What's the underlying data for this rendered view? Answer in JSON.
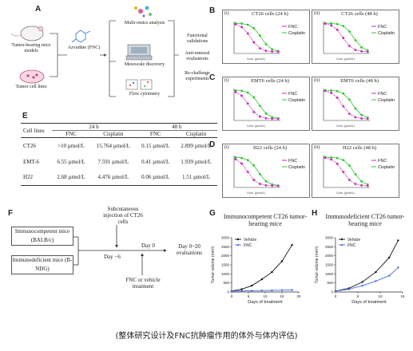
{
  "panelA": {
    "label": "A",
    "mice_label": "Tumor-bearing mice models",
    "cells_label": "Tumor cell lines",
    "drug_label": "Azvudine (FNC)",
    "methods": [
      "Multi-omics analysis",
      "Mesoscale discovery",
      "Flow cytometry"
    ],
    "outcomes": [
      "Functional validations",
      "Anti-tumoral evaluations",
      "Re-challenge experiments"
    ]
  },
  "panels_bcd": [
    {
      "label": "B",
      "charts": [
        {
          "roman": "(i)",
          "title": "CT26 cells (24 h)",
          "shift": 0.35
        },
        {
          "roman": "(ii)",
          "title": "CT26 cells (48 h)",
          "shift": 0.42
        }
      ]
    },
    {
      "label": "C",
      "charts": [
        {
          "roman": "(i)",
          "title": "EMT6 cells (24 h)",
          "shift": 0.3
        },
        {
          "roman": "(ii)",
          "title": "EMT6 cells (48 h)",
          "shift": 0.4
        }
      ]
    },
    {
      "label": "D",
      "charts": [
        {
          "roman": "(i)",
          "title": "H22 cells (24 h)",
          "shift": 0.28
        },
        {
          "roman": "(ii)",
          "title": "H22 cells (48 h)",
          "shift": 0.42
        }
      ]
    }
  ],
  "legend": {
    "fnc": "FNC",
    "cis": "Cisplatin"
  },
  "colors": {
    "fnc": "#cc2bb5",
    "cis": "#2ec82e",
    "vehicle": "#111111",
    "fnc_line": "#4a6fe0"
  },
  "panelE": {
    "label": "E",
    "col_cell": "Cell lines",
    "h24": "24 h",
    "h48": "48 h",
    "sub": [
      "FNC",
      "Cisplatin",
      "FNC",
      "Cisplatin"
    ],
    "rows": [
      {
        "name": "CT26",
        "v": [
          ">10 µmol/L",
          "15.764 µmol/L",
          "0.15 µmol/L",
          "2.899 µmol/L"
        ]
      },
      {
        "name": "EMT-6",
        "v": [
          "6.55 µmol/L",
          "7.591 µmol/L",
          "0.41 µmol/L",
          "1.939 µmol/L"
        ]
      },
      {
        "name": "H22",
        "v": [
          "2.68 µmol/L",
          "4.476 µmol/L",
          "0.06 µmol/L",
          "1.51 µmol/L"
        ]
      }
    ]
  },
  "panelF": {
    "label": "F",
    "injection": "Subcutaneous injection of CT26 cells",
    "imc": "Immunocompetent mice (BALB/c)",
    "imd": "Immunodeficient mice (B-NDG)",
    "day_m6": "Day −6",
    "day0": "Day 0",
    "eval": "Day 0~20 evaluations",
    "treat": "FNC or vehicle treatment"
  },
  "panelG": {
    "label": "G",
    "title": "Immunocompetent CT26 tumor-bearing mice",
    "legend": [
      "Vehicle",
      "FNC"
    ],
    "xlabel": "Days of treatment",
    "ylabel": "Tumor volume (mm³)",
    "xticks": [
      "0",
      "5",
      "10",
      "15",
      "20"
    ],
    "yticks": [
      "0",
      "500",
      "1000",
      "1500",
      "2000",
      "2500",
      "3000"
    ]
  },
  "panelH": {
    "label": "H",
    "title": "Immunodeficient CT26 tumor-bearing mice",
    "legend": [
      "Vehicle",
      "FNC"
    ],
    "xlabel": "Days of treatment",
    "ylabel": "Tumor volume (mm³)",
    "xticks": [
      "0",
      "5",
      "10",
      "15"
    ],
    "yticks": [
      "0",
      "500",
      "1000",
      "1500",
      "2000",
      "2500",
      "3000"
    ]
  },
  "chart_data": [
    {
      "type": "line",
      "title": "Immunocompetent CT26 tumor-bearing mice",
      "xlabel": "Days of treatment",
      "ylabel": "Tumor volume (mm³)",
      "xlim": [
        0,
        20
      ],
      "ylim": [
        0,
        3000
      ],
      "series": [
        {
          "name": "Vehicle",
          "x": [
            0,
            3,
            6,
            9,
            12,
            15,
            18
          ],
          "y": [
            50,
            150,
            350,
            700,
            1100,
            1700,
            2600
          ]
        },
        {
          "name": "FNC",
          "x": [
            0,
            3,
            6,
            9,
            12,
            15,
            18
          ],
          "y": [
            50,
            60,
            70,
            80,
            90,
            100,
            110
          ]
        }
      ]
    },
    {
      "type": "line",
      "title": "Immunodeficient CT26 tumor-bearing mice",
      "xlabel": "Days of treatment",
      "ylabel": "Tumor volume (mm³)",
      "xlim": [
        0,
        15
      ],
      "ylim": [
        0,
        3000
      ],
      "series": [
        {
          "name": "Vehicle",
          "x": [
            0,
            3,
            6,
            9,
            12,
            14
          ],
          "y": [
            50,
            200,
            550,
            1100,
            1900,
            2850
          ]
        },
        {
          "name": "FNC",
          "x": [
            0,
            3,
            6,
            9,
            12,
            14
          ],
          "y": [
            50,
            150,
            350,
            600,
            900,
            1350
          ]
        }
      ]
    }
  ],
  "caption": "(整体研究设计及FNC抗肿瘤作用的体外与体内评估)"
}
